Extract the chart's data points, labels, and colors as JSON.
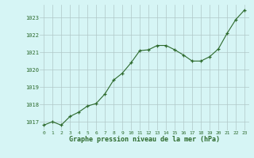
{
  "x": [
    0,
    1,
    2,
    3,
    4,
    5,
    6,
    7,
    8,
    9,
    10,
    11,
    12,
    13,
    14,
    15,
    16,
    17,
    18,
    19,
    20,
    21,
    22,
    23
  ],
  "y": [
    1016.8,
    1017.0,
    1016.8,
    1017.3,
    1017.55,
    1017.9,
    1018.05,
    1018.6,
    1019.4,
    1019.8,
    1020.4,
    1021.1,
    1021.15,
    1021.4,
    1021.4,
    1021.15,
    1020.85,
    1020.5,
    1020.5,
    1020.75,
    1021.2,
    1022.1,
    1022.9,
    1023.45
  ],
  "ylim": [
    1016.5,
    1023.75
  ],
  "yticks": [
    1017,
    1018,
    1019,
    1020,
    1021,
    1022,
    1023
  ],
  "xticks": [
    0,
    1,
    2,
    3,
    4,
    5,
    6,
    7,
    8,
    9,
    10,
    11,
    12,
    13,
    14,
    15,
    16,
    17,
    18,
    19,
    20,
    21,
    22,
    23
  ],
  "line_color": "#2d6a2d",
  "marker_color": "#2d6a2d",
  "bg_color": "#d6f5f5",
  "grid_color": "#b0c8c8",
  "xlabel": "Graphe pression niveau de la mer (hPa)",
  "xlabel_color": "#2d6a2d",
  "tick_color": "#2d6a2d"
}
